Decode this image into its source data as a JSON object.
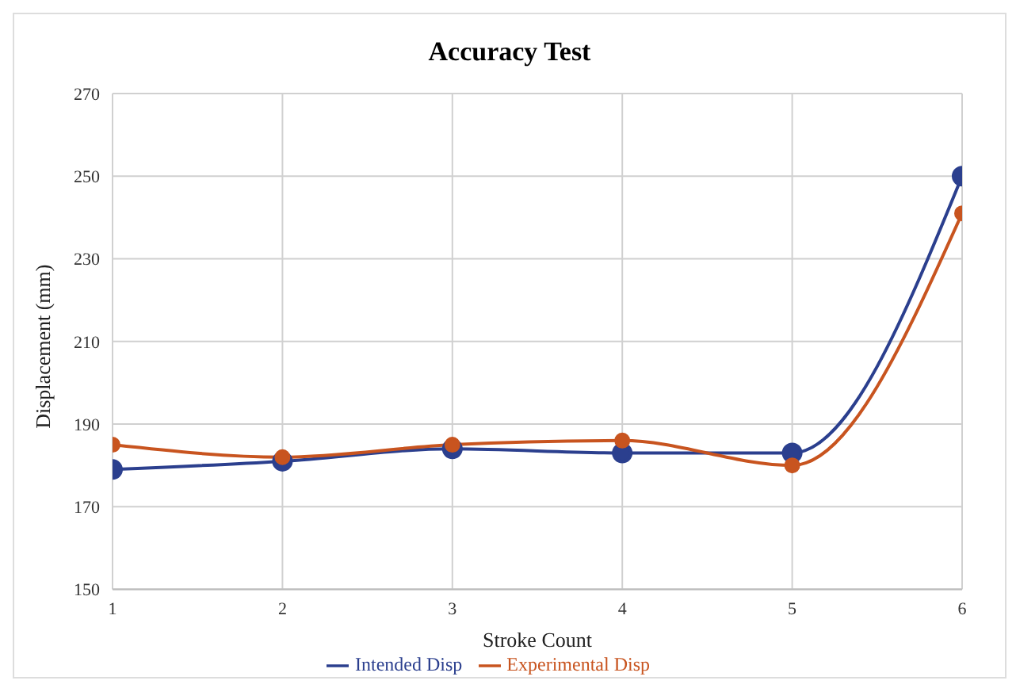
{
  "chart_data": {
    "type": "line",
    "title": "Accuracy Test",
    "xlabel": "Stroke Count",
    "ylabel": "Displacement (mm)",
    "x": [
      1,
      2,
      3,
      4,
      5,
      6
    ],
    "series": [
      {
        "name": "Intended Disp",
        "color": "#2b3f8e",
        "values": [
          179,
          181,
          184,
          183,
          183,
          250
        ]
      },
      {
        "name": "Experimental Disp",
        "color": "#c8541f",
        "values": [
          185,
          182,
          185,
          186,
          180,
          241
        ]
      }
    ],
    "xlim": [
      1,
      6
    ],
    "xticks": [
      1,
      2,
      3,
      4,
      5,
      6
    ],
    "ylim": [
      150,
      270
    ],
    "yticks": [
      150,
      170,
      190,
      210,
      230,
      250,
      270
    ],
    "grid": true,
    "legend": "bottom",
    "marker": "circle",
    "line_style": "solid"
  }
}
